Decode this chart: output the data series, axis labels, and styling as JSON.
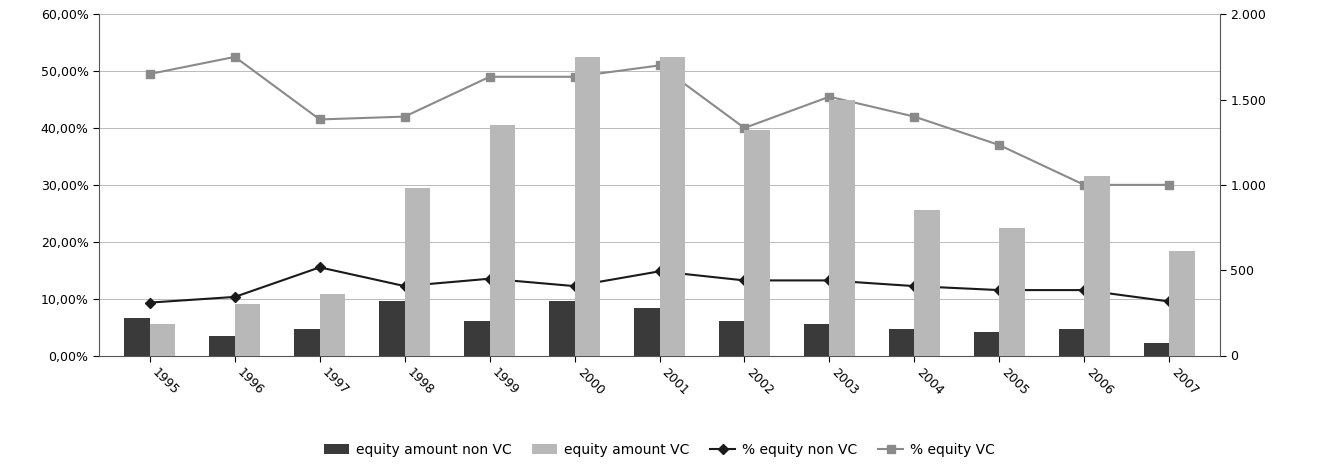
{
  "years": [
    1995,
    1996,
    1997,
    1998,
    1999,
    2000,
    2001,
    2002,
    2003,
    2004,
    2005,
    2006,
    2007
  ],
  "equity_amount_non_vc": [
    220,
    115,
    155,
    320,
    200,
    320,
    280,
    200,
    185,
    155,
    135,
    155,
    75
  ],
  "equity_amount_vc": [
    185,
    300,
    360,
    980,
    1350,
    1750,
    1750,
    1320,
    1500,
    850,
    750,
    1050,
    610
  ],
  "pct_equity_non_vc": [
    0.093,
    0.103,
    0.155,
    0.122,
    0.135,
    0.122,
    0.148,
    0.132,
    0.132,
    0.122,
    0.115,
    0.115,
    0.095
  ],
  "pct_equity_vc": [
    0.495,
    0.525,
    0.415,
    0.42,
    0.49,
    0.49,
    0.51,
    0.4,
    0.455,
    0.42,
    0.37,
    0.3,
    0.3
  ],
  "bar_color_non_vc": "#3a3a3a",
  "bar_color_vc": "#b8b8b8",
  "line_color_non_vc": "#1a1a1a",
  "line_color_vc": "#8a8a8a",
  "bar_width": 0.3,
  "left_ylim": [
    0.0,
    0.6
  ],
  "left_yticks": [
    0.0,
    0.1,
    0.2,
    0.3,
    0.4,
    0.5,
    0.6
  ],
  "left_yticklabels": [
    "0,00%",
    "10,00%",
    "20,00%",
    "30,00%",
    "40,00%",
    "50,00%",
    "60,00%"
  ],
  "right_ylim": [
    0,
    2000
  ],
  "right_yticks": [
    0,
    500,
    1000,
    1500,
    2000
  ],
  "right_yticklabels": [
    "0",
    "500",
    "1.000",
    "1.500",
    "2.000"
  ],
  "legend_labels": [
    "equity amount non VC",
    "equity amount VC",
    "% equity non VC",
    "% equity VC"
  ],
  "fig_width": 13.19,
  "fig_height": 4.74,
  "dpi": 100
}
